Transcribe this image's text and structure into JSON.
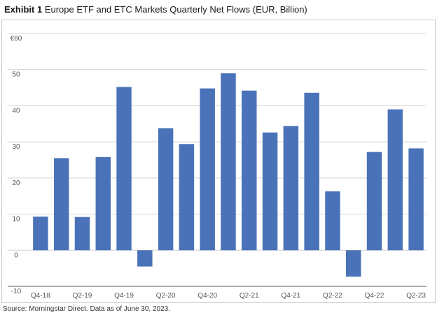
{
  "header": {
    "exhibit_label": "Exhibit 1",
    "title_text": "Europe ETF and ETC Markets Quarterly Net Flows (EUR, Billion)"
  },
  "footer": {
    "source": "Source: Morningstar Direct. Data as of June 30, 2023."
  },
  "chart_data": {
    "type": "bar",
    "title": "Europe ETF and ETC Markets Quarterly Net Flows (EUR, Billion)",
    "xlabel": "",
    "ylabel": "",
    "ylim": [
      -10,
      60
    ],
    "y_ticks": [
      -10,
      0,
      10,
      20,
      30,
      40,
      50,
      60
    ],
    "y_tick_labels": [
      "-10",
      "0",
      "10",
      "20",
      "30",
      "40",
      "50",
      "€60"
    ],
    "categories": [
      "Q4-18",
      "Q1-19",
      "Q2-19",
      "Q3-19",
      "Q4-19",
      "Q1-20",
      "Q2-20",
      "Q3-20",
      "Q4-20",
      "Q1-21",
      "Q2-21",
      "Q3-21",
      "Q4-21",
      "Q1-22",
      "Q2-22",
      "Q3-22",
      "Q4-22",
      "Q1-23",
      "Q2-23"
    ],
    "x_tick_labels": [
      "Q4-18",
      "",
      "Q2-19",
      "",
      "Q4-19",
      "",
      "Q2-20",
      "",
      "Q4-20",
      "",
      "Q2-21",
      "",
      "Q4-21",
      "",
      "Q2-22",
      "",
      "Q4-22",
      "",
      "Q2-23"
    ],
    "values": [
      9.3,
      25.5,
      9.2,
      25.8,
      45.2,
      -4.5,
      33.8,
      29.4,
      44.8,
      49.0,
      44.2,
      32.6,
      34.4,
      43.6,
      16.3,
      -7.3,
      27.2,
      39.0,
      28.2
    ],
    "bar_color": "#4a72b8",
    "grid": true
  }
}
